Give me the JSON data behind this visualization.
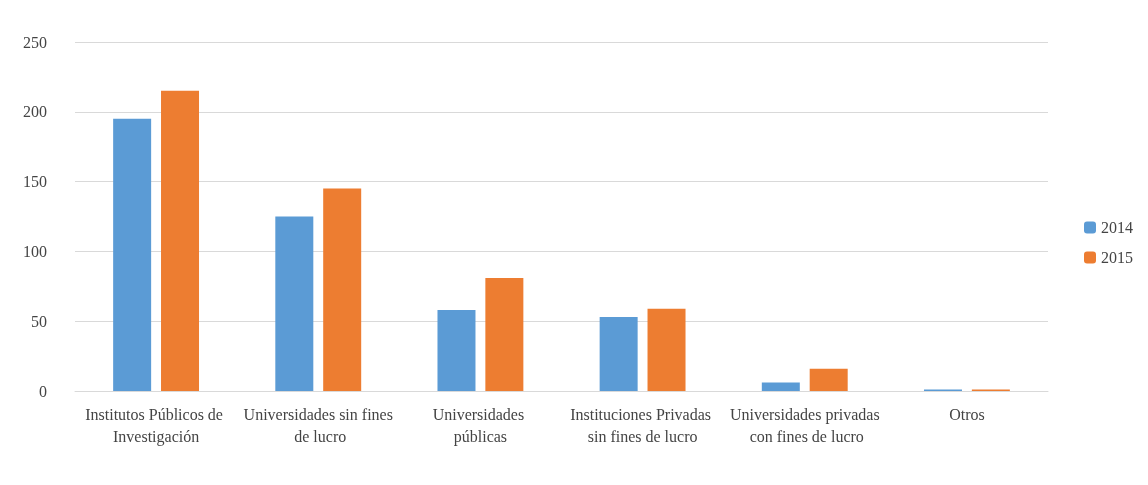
{
  "chart_data": {
    "type": "bar",
    "categories": [
      "Institutos Públicos de Investigación",
      "Universidades sin fines de lucro",
      "Universidades públicas",
      "Instituciones Privadas sin fines de lucro",
      "Universidades privadas con fines de lucro",
      "Otros"
    ],
    "series": [
      {
        "name": "2014",
        "color": "#5b9bd5",
        "values": [
          195,
          125,
          58,
          53,
          6,
          1
        ]
      },
      {
        "name": "2015",
        "color": "#ed7d31",
        "values": [
          215,
          145,
          81,
          59,
          16,
          1
        ]
      }
    ],
    "ylim": [
      0,
      250
    ],
    "yticks": [
      0,
      50,
      100,
      150,
      200,
      250
    ],
    "grid": "y",
    "legend": "right"
  }
}
